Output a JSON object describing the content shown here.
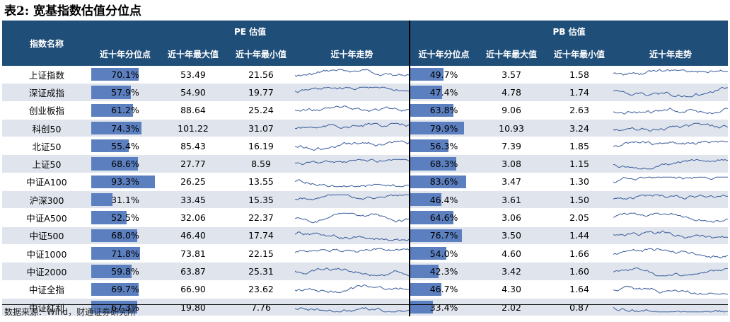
{
  "title": "表2: 宽基指数估值分位点",
  "source": "数据来源：Wind，财通证券研究所",
  "header": {
    "index_name": "指数名称",
    "pe_group": "PE 估值",
    "pb_group": "PB 估值",
    "pe_cols": [
      "近十年分位点",
      "近十年最大值",
      "近十年最小值",
      "近十年走势"
    ],
    "pb_cols": [
      "近十年分位点",
      "近十年最大值",
      "近十年最小值",
      "近十年走势"
    ]
  },
  "colors": {
    "header_bg": "#1f4e79",
    "bar": "#5b7fbf",
    "stripe": "#dfe4ed",
    "spark": "#3a5d9c"
  },
  "rows": [
    {
      "name": "上证指数",
      "pe_pct": "70.1%",
      "pe_pct_value": 70.1,
      "pe_max": "53.49",
      "pe_min": "21.56",
      "pb_pct": "49.7%",
      "pb_pct_value": 49.7,
      "pb_max": "3.57",
      "pb_min": "1.58"
    },
    {
      "name": "深证成指",
      "pe_pct": "57.9%",
      "pe_pct_value": 57.9,
      "pe_max": "54.90",
      "pe_min": "19.77",
      "pb_pct": "47.4%",
      "pb_pct_value": 47.4,
      "pb_max": "4.78",
      "pb_min": "1.74"
    },
    {
      "name": "创业板指",
      "pe_pct": "61.2%",
      "pe_pct_value": 61.2,
      "pe_max": "88.64",
      "pe_min": "25.24",
      "pb_pct": "63.8%",
      "pb_pct_value": 63.8,
      "pb_max": "9.06",
      "pb_min": "2.63"
    },
    {
      "name": "科创50",
      "pe_pct": "74.3%",
      "pe_pct_value": 74.3,
      "pe_max": "101.22",
      "pe_min": "31.07",
      "pb_pct": "79.9%",
      "pb_pct_value": 79.9,
      "pb_max": "10.93",
      "pb_min": "3.24"
    },
    {
      "name": "北证50",
      "pe_pct": "55.4%",
      "pe_pct_value": 55.4,
      "pe_max": "85.43",
      "pe_min": "16.19",
      "pb_pct": "56.3%",
      "pb_pct_value": 56.3,
      "pb_max": "7.39",
      "pb_min": "1.85"
    },
    {
      "name": "上证50",
      "pe_pct": "68.6%",
      "pe_pct_value": 68.6,
      "pe_max": "27.77",
      "pe_min": "8.59",
      "pb_pct": "68.3%",
      "pb_pct_value": 68.3,
      "pb_max": "3.08",
      "pb_min": "1.15"
    },
    {
      "name": "中证A100",
      "pe_pct": "93.3%",
      "pe_pct_value": 93.3,
      "pe_max": "26.25",
      "pe_min": "13.55",
      "pb_pct": "83.6%",
      "pb_pct_value": 83.6,
      "pb_max": "3.47",
      "pb_min": "1.30"
    },
    {
      "name": "沪深300",
      "pe_pct": "31.1%",
      "pe_pct_value": 31.1,
      "pe_max": "33.45",
      "pe_min": "15.35",
      "pb_pct": "46.4%",
      "pb_pct_value": 46.4,
      "pb_max": "3.61",
      "pb_min": "1.50"
    },
    {
      "name": "中证A500",
      "pe_pct": "52.5%",
      "pe_pct_value": 52.5,
      "pe_max": "32.06",
      "pe_min": "22.37",
      "pb_pct": "64.6%",
      "pb_pct_value": 64.6,
      "pb_max": "3.06",
      "pb_min": "2.05"
    },
    {
      "name": "中证500",
      "pe_pct": "68.0%",
      "pe_pct_value": 68.0,
      "pe_max": "46.40",
      "pe_min": "17.74",
      "pb_pct": "76.7%",
      "pb_pct_value": 76.7,
      "pb_max": "3.50",
      "pb_min": "1.44"
    },
    {
      "name": "中证1000",
      "pe_pct": "71.8%",
      "pe_pct_value": 71.8,
      "pe_max": "73.81",
      "pe_min": "22.15",
      "pb_pct": "54.0%",
      "pb_pct_value": 54.0,
      "pb_max": "4.60",
      "pb_min": "1.66"
    },
    {
      "name": "中证2000",
      "pe_pct": "59.8%",
      "pe_pct_value": 59.8,
      "pe_max": "63.87",
      "pe_min": "25.31",
      "pb_pct": "42.3%",
      "pb_pct_value": 42.3,
      "pb_max": "3.42",
      "pb_min": "1.60"
    },
    {
      "name": "中证全指",
      "pe_pct": "69.7%",
      "pe_pct_value": 69.7,
      "pe_max": "66.90",
      "pe_min": "23.62",
      "pb_pct": "46.7%",
      "pb_pct_value": 46.7,
      "pb_max": "4.30",
      "pb_min": "1.64"
    },
    {
      "name": "中证红利",
      "pe_pct": "67.3%",
      "pe_pct_value": 67.3,
      "pe_max": "19.80",
      "pe_min": "7.76",
      "pb_pct": "33.4%",
      "pb_pct_value": 33.4,
      "pb_max": "2.02",
      "pb_min": "0.87"
    }
  ]
}
